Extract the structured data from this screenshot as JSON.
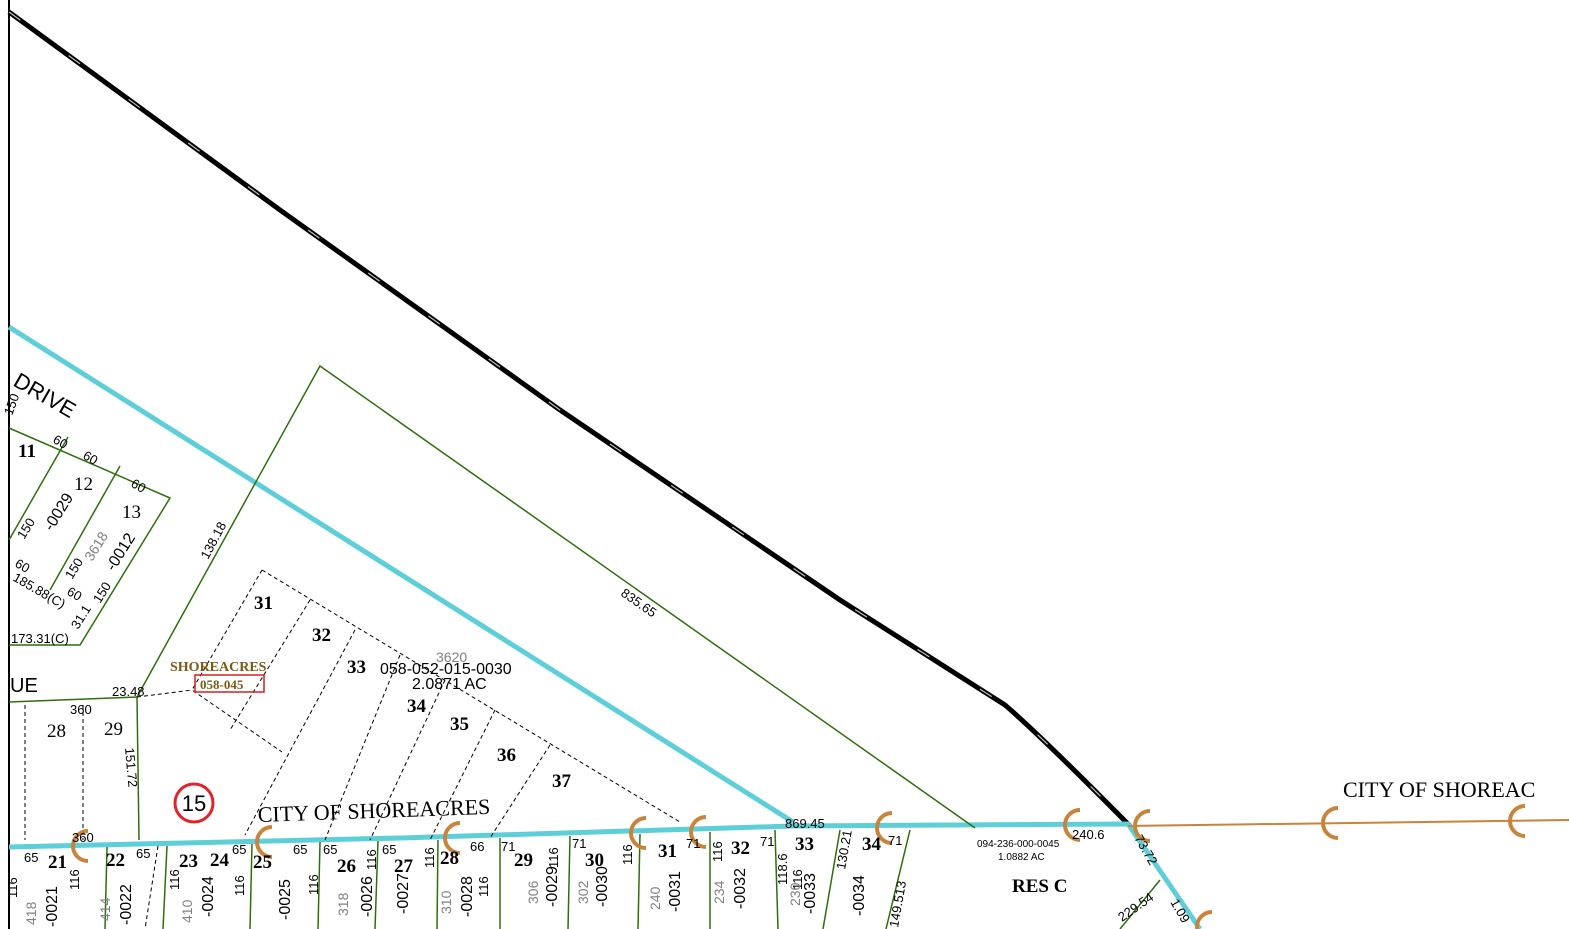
{
  "colors": {
    "city_limit": "#5ecfd8",
    "lot_line": "#2f6e0e",
    "road": "#000000",
    "annex_symbol": "#c8843c",
    "map_number_ring": "#e0242a",
    "subdivision_label": "#7a5a14",
    "subdivision_box": "#d42020"
  },
  "icons": {
    "map_number": "circled-number",
    "annex_marker": "c-shaped-arc-marker"
  },
  "streets": {
    "drive": "DRIVE",
    "avenue": "UE"
  },
  "city_labels": {
    "main": "CITY OF SHOREACRES",
    "right": "CITY OF SHOREAC"
  },
  "subdivision": {
    "name": "SHOREACRES",
    "code": "058-045"
  },
  "map_number": "15",
  "parcels": {
    "main_address": "3620",
    "main_id": "058-052-015-0030",
    "main_area": "2.0871 AC",
    "res_c_id": "094-236-000-0045",
    "res_c_area": "1.0882 AC",
    "res_c_label": "RES C"
  },
  "upper_block": {
    "lots": [
      "11",
      "12",
      "13"
    ],
    "address": "3618",
    "ids": [
      "-0029",
      "-0012"
    ],
    "dims": [
      "150",
      "60",
      "60",
      "60",
      "150",
      "60",
      "150",
      "60",
      "150",
      "185.88(C)",
      "173.31(C)",
      "31.1"
    ]
  },
  "dimensions": {
    "d138": "138.18",
    "d835": "835.65",
    "d869": "869.45",
    "d240": "240.6",
    "d2348": "23.48",
    "d73": "73.72",
    "d229": "229.54",
    "d109": "1.09",
    "d151": "151.72",
    "d149": "149.513",
    "d130": "130.21",
    "d118": "118.6",
    "d360a": "360",
    "d360b": "360"
  },
  "inner_lots": [
    "31",
    "32",
    "33",
    "34",
    "35",
    "36",
    "37"
  ],
  "upper_lots": [
    "28",
    "29"
  ],
  "bottom_lots": [
    "21",
    "22",
    "23",
    "24",
    "25",
    "26",
    "27",
    "28",
    "29",
    "30",
    "31",
    "32",
    "33",
    "34"
  ],
  "frontage_dims": [
    "65",
    "65",
    "65",
    "65",
    "65",
    "65",
    "66",
    "71",
    "71",
    "71",
    "71",
    "71"
  ],
  "depth_dims": [
    "116",
    "116",
    "116",
    "116",
    "116",
    "116",
    "116",
    "116",
    "116",
    "116",
    "116",
    "116"
  ],
  "addresses": [
    "418",
    "414",
    "410",
    "318",
    "310",
    "306",
    "302",
    "240",
    "234",
    "230"
  ],
  "parcel_ids": [
    "-0021",
    "-0022",
    "-0024",
    "-0025",
    "-0026",
    "-0027",
    "-0028",
    "-0029",
    "-0030",
    "-0031",
    "-0032",
    "-0033",
    "-0034"
  ]
}
